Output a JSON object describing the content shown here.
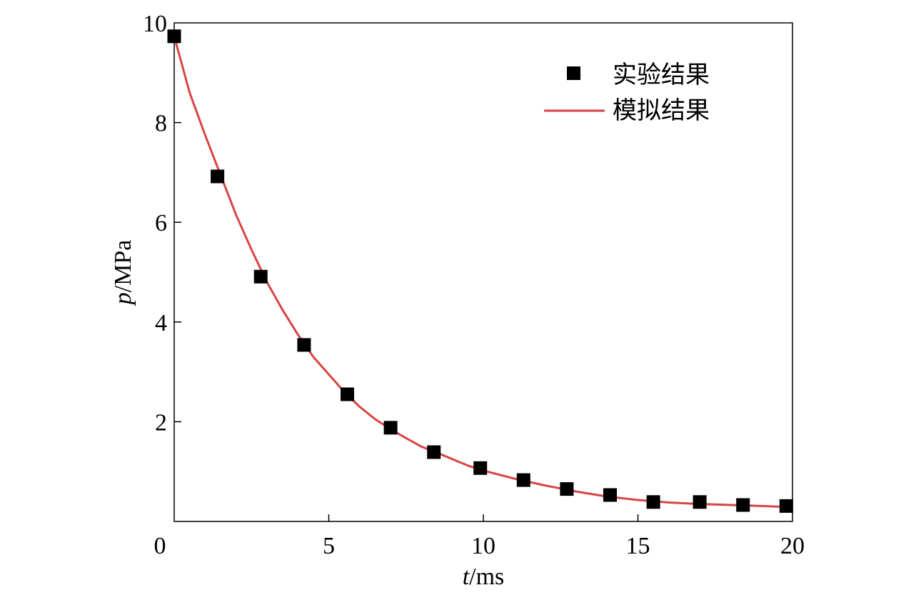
{
  "chart_data": {
    "type": "scatter",
    "xlabel_var": "t",
    "xlabel_unit": "/ms",
    "ylabel_var": "p",
    "ylabel_unit": "/MPa",
    "xlim": [
      0,
      20
    ],
    "ylim": [
      0,
      10
    ],
    "xticks": [
      0,
      5,
      10,
      15,
      20
    ],
    "yticks": [
      2,
      4,
      6,
      8,
      10
    ],
    "grid": false,
    "legend_position": "top-right",
    "series": [
      {
        "name": "实验结果",
        "kind": "scatter",
        "marker": "square",
        "color": "#000000",
        "x": [
          0.0,
          1.4,
          2.8,
          4.2,
          5.6,
          7.0,
          8.4,
          9.9,
          11.3,
          12.7,
          14.1,
          15.5,
          17.0,
          18.4,
          19.8
        ],
        "y": [
          9.73,
          6.92,
          4.91,
          3.54,
          2.55,
          1.88,
          1.39,
          1.07,
          0.83,
          0.65,
          0.53,
          0.39,
          0.39,
          0.33,
          0.31
        ]
      },
      {
        "name": "模拟结果",
        "kind": "line",
        "color": "#d94444",
        "x": [
          0.0,
          0.5,
          1.0,
          1.5,
          2.0,
          2.5,
          3.0,
          3.5,
          4.0,
          4.5,
          5.0,
          5.5,
          6.0,
          6.5,
          7.0,
          7.5,
          8.0,
          8.5,
          9.0,
          9.5,
          10.0,
          11.0,
          12.0,
          13.0,
          14.0,
          15.0,
          16.0,
          17.0,
          18.0,
          19.0,
          19.8
        ],
        "y": [
          9.73,
          8.6,
          7.75,
          6.95,
          6.15,
          5.45,
          4.8,
          4.25,
          3.75,
          3.3,
          2.95,
          2.6,
          2.3,
          2.05,
          1.85,
          1.67,
          1.5,
          1.38,
          1.25,
          1.12,
          1.02,
          0.86,
          0.72,
          0.6,
          0.5,
          0.43,
          0.38,
          0.35,
          0.33,
          0.31,
          0.29
        ]
      }
    ]
  }
}
